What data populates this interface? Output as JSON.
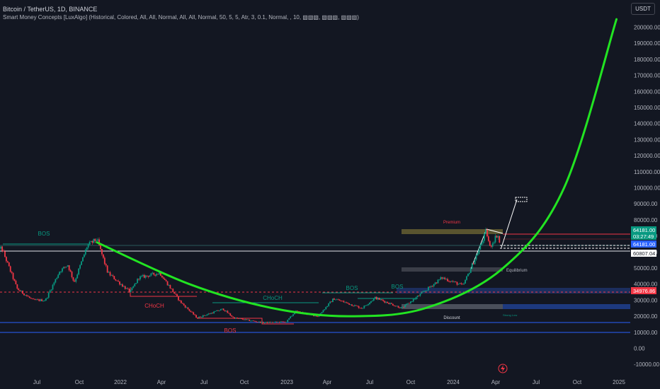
{
  "header": {
    "title": "Bitcoin / TetherUS, 1D, BINANCE",
    "indicator": "Smart Money Concepts [LuxAlgo] (Historical, Colored, All, All, Normal, All, All, Normal, 50, 5, 5, Atr, 3, 0.1, Normal, , 10, ▧▧▧, ▧▧▧, ▧▧▧)"
  },
  "currency_button": "USDT",
  "colors": {
    "background": "#131722",
    "text": "#b2b5be",
    "bull": "#089981",
    "bear": "#f23645",
    "curve": "#22e422",
    "zone_blue": "#1e3a8a"
  },
  "chart_data": {
    "type": "candlestick",
    "ylim": [
      -10000,
      210000
    ],
    "y_ticks": [
      "200000.00",
      "190000.00",
      "180000.00",
      "170000.00",
      "160000.00",
      "150000.00",
      "140000.00",
      "130000.00",
      "120000.00",
      "110000.00",
      "100000.00",
      "90000.00",
      "80000.00",
      "70000.00",
      "60000.00",
      "50000.00",
      "40000.00",
      "30000.00",
      "20000.00",
      "10000.00",
      "0.00",
      "-10000.00"
    ],
    "x_ticks": [
      "Jul",
      "Oct",
      "2022",
      "Apr",
      "Jul",
      "Oct",
      "2023",
      "Apr",
      "Jul",
      "Oct",
      "2024",
      "Apr",
      "Jul",
      "Oct",
      "2025"
    ],
    "x_range": [
      "2021-04-01",
      "2025-02-15"
    ],
    "price_path": [
      [
        "2021-04-01",
        57000
      ],
      [
        "2021-04-14",
        63000
      ],
      [
        "2021-05-19",
        37000
      ],
      [
        "2021-06-22",
        30000
      ],
      [
        "2021-07-20",
        30000
      ],
      [
        "2021-08-20",
        48000
      ],
      [
        "2021-09-07",
        52000
      ],
      [
        "2021-09-21",
        41000
      ],
      [
        "2021-10-20",
        64000
      ],
      [
        "2021-11-10",
        68000
      ],
      [
        "2021-12-04",
        47000
      ],
      [
        "2022-01-22",
        35000
      ],
      [
        "2022-02-10",
        44000
      ],
      [
        "2022-03-28",
        47000
      ],
      [
        "2022-05-12",
        29000
      ],
      [
        "2022-06-18",
        19000
      ],
      [
        "2022-08-14",
        24500
      ],
      [
        "2022-09-06",
        19000
      ],
      [
        "2022-11-09",
        16000
      ],
      [
        "2022-12-31",
        16500
      ],
      [
        "2023-01-20",
        23000
      ],
      [
        "2023-03-10",
        20000
      ],
      [
        "2023-04-14",
        31000
      ],
      [
        "2023-06-15",
        25000
      ],
      [
        "2023-07-14",
        31500
      ],
      [
        "2023-09-11",
        25000
      ],
      [
        "2023-10-23",
        34000
      ],
      [
        "2023-12-08",
        44000
      ],
      [
        "2024-01-23",
        39000
      ],
      [
        "2024-02-28",
        62000
      ],
      [
        "2024-03-14",
        73000
      ],
      [
        "2024-03-22",
        63000
      ],
      [
        "2024-04-08",
        71500
      ],
      [
        "2024-04-13",
        64181
      ]
    ],
    "annotations": [
      {
        "text": "BOS",
        "color": "#089981"
      },
      {
        "text": "CHoCH",
        "color": "#f23645"
      },
      {
        "text": "BOS",
        "color": "#f23645"
      },
      {
        "text": "CHoCH",
        "color": "#089981"
      },
      {
        "text": "BOS",
        "color": "#089981"
      },
      {
        "text": "BOS",
        "color": "#089981"
      },
      {
        "text": "Premium",
        "color": "#f23645"
      },
      {
        "text": "Equilibrium",
        "color": "#b2b5be"
      },
      {
        "text": "Discount",
        "color": "#d1d4dc"
      },
      {
        "text": "Strong Low",
        "color": "#089981"
      }
    ],
    "price_labels": [
      {
        "value": "64181.00",
        "color": "#089981"
      },
      {
        "value": "03:27:49",
        "color": "#089981"
      },
      {
        "value": "64181.00",
        "color": "#2962ff"
      },
      {
        "value": "60807.04",
        "color": "#ffffff"
      },
      {
        "value": "34976.86",
        "color": "#f23645"
      }
    ],
    "curve": {
      "color": "#22e422",
      "points": [
        [
          "2021-11-10",
          66000
        ],
        [
          "2022-06-01",
          40000
        ],
        [
          "2022-12-01",
          25000
        ],
        [
          "2023-05-15",
          20000
        ],
        [
          "2023-11-01",
          25000
        ],
        [
          "2024-04-20",
          50000
        ],
        [
          "2024-09-01",
          100000
        ],
        [
          "2024-12-25",
          205000
        ]
      ]
    }
  }
}
